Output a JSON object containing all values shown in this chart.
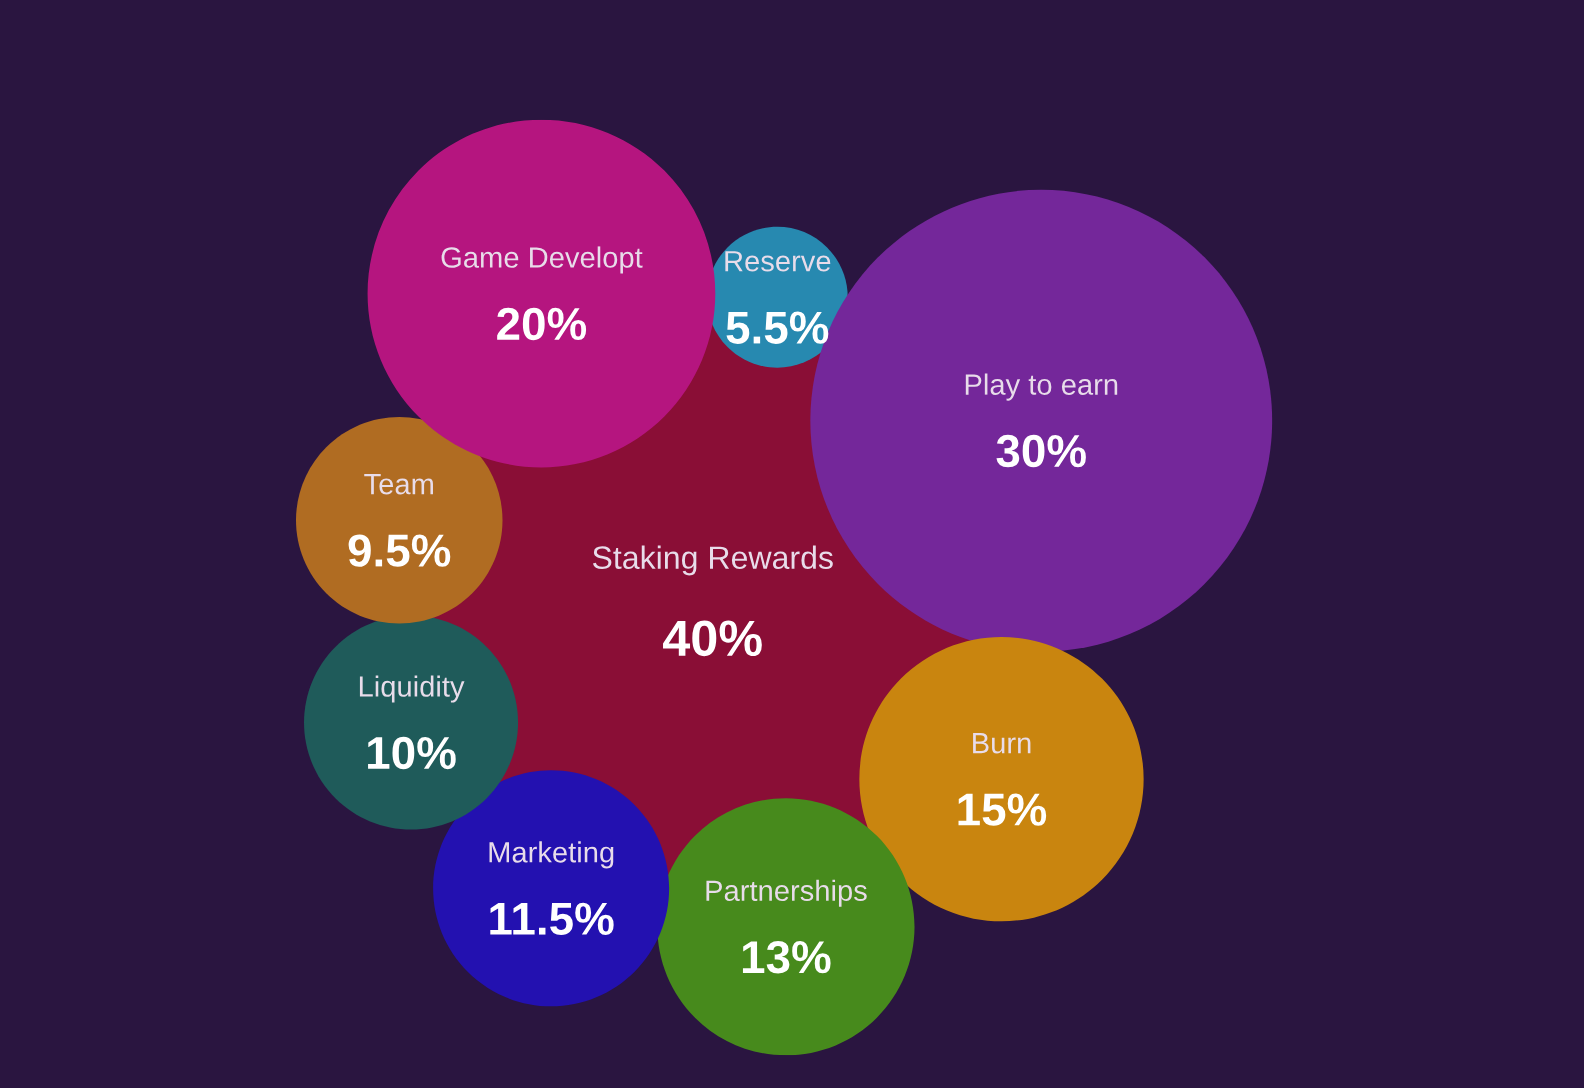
{
  "chart_data": {
    "type": "other",
    "categories": [
      "Staking Rewards",
      "Reserve",
      "Play to earn",
      "Burn",
      "Partnerships",
      "Marketing",
      "Liquidity",
      "Team",
      "Game Developt"
    ],
    "values": [
      40,
      5.5,
      30,
      15,
      13,
      11.5,
      10,
      9.5,
      20
    ],
    "value_labels": [
      "40%",
      "5.5%",
      "30%",
      "15%",
      "13%",
      "11.5%",
      "10%",
      "9.5%",
      "20%"
    ],
    "colors": [
      "#8a0e36",
      "#2789b0",
      "#74279a",
      "#c9850f",
      "#478a1c",
      "#2311b0",
      "#1f5b5a",
      "#b06c22",
      "#b5157f"
    ]
  }
}
